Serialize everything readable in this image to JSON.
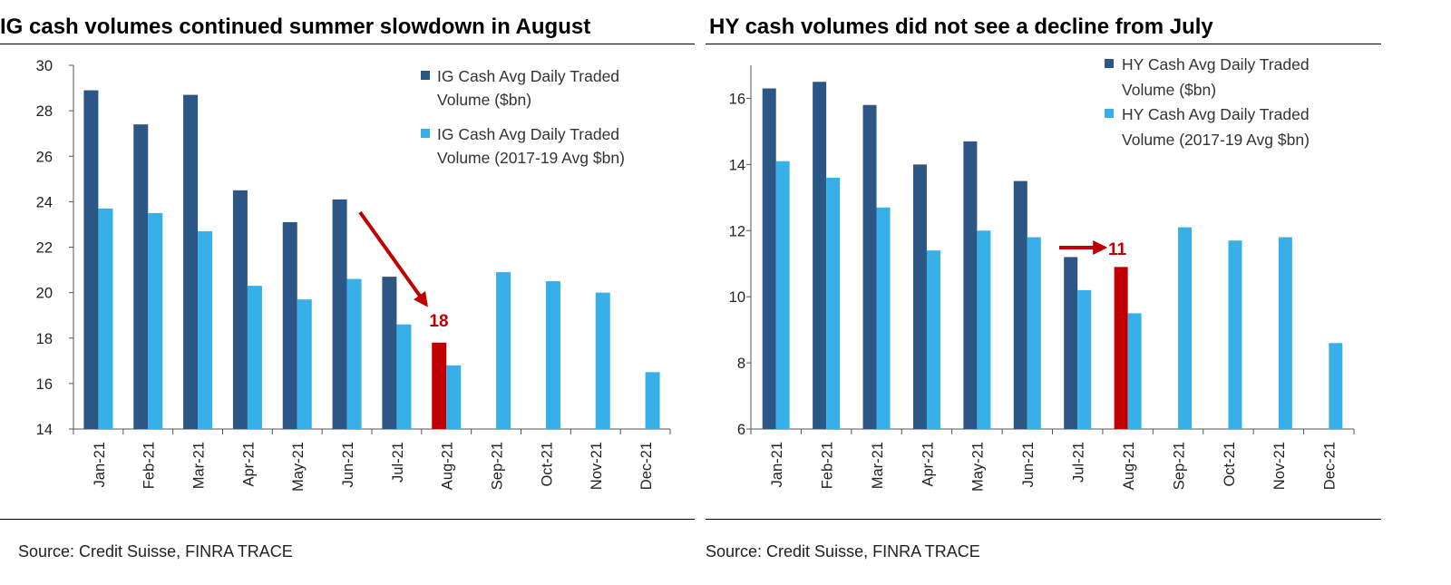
{
  "colors": {
    "dark": "#2b5685",
    "light": "#37b0ea",
    "highlight": "#c00000",
    "axis": "#000000"
  },
  "charts": [
    {
      "title": "IG cash volumes continued summer slowdown in August",
      "source": "Source: Credit Suisse, FINRA TRACE",
      "callout_label": "18"
    },
    {
      "title": "HY cash volumes did not see a decline from July",
      "source": "Source: Credit Suisse, FINRA TRACE",
      "callout_label": "11"
    }
  ],
  "chart_data": [
    {
      "type": "bar",
      "title": "IG cash volumes continued summer slowdown in August",
      "categories": [
        "Jan-21",
        "Feb-21",
        "Mar-21",
        "Apr-21",
        "May-21",
        "Jun-21",
        "Jul-21",
        "Aug-21",
        "Sep-21",
        "Oct-21",
        "Nov-21",
        "Dec-21"
      ],
      "series": [
        {
          "name": "IG Cash Avg Daily Traded Volume ($bn)",
          "legend_lines": [
            "IG Cash Avg Daily Traded",
            "Volume ($bn)"
          ],
          "values": [
            28.9,
            27.4,
            28.7,
            24.5,
            23.1,
            24.1,
            20.7,
            17.8,
            null,
            null,
            null,
            null
          ]
        },
        {
          "name": "IG Cash Avg Daily Traded Volume (2017-19 Avg $bn)",
          "legend_lines": [
            "IG Cash Avg Daily Traded",
            "Volume (2017-19 Avg $bn)"
          ],
          "values": [
            23.7,
            23.5,
            22.7,
            20.3,
            19.7,
            20.6,
            18.6,
            16.8,
            20.9,
            20.5,
            20.0,
            16.5
          ]
        }
      ],
      "highlight": {
        "series": 0,
        "index": 7
      },
      "annotation": {
        "text": "18",
        "arrow": "diagonal"
      },
      "ylim": [
        14,
        30
      ],
      "yticks": [
        14,
        16,
        18,
        20,
        22,
        24,
        26,
        28,
        30
      ],
      "xlabel": "",
      "ylabel": "",
      "legend": "top-right"
    },
    {
      "type": "bar",
      "title": "HY cash volumes did not see a decline from July",
      "categories": [
        "Jan-21",
        "Feb-21",
        "Mar-21",
        "Apr-21",
        "May-21",
        "Jun-21",
        "Jul-21",
        "Aug-21",
        "Sep-21",
        "Oct-21",
        "Nov-21",
        "Dec-21"
      ],
      "series": [
        {
          "name": "HY Cash Avg Daily Traded Volume ($bn)",
          "legend_lines": [
            "HY Cash Avg Daily Traded",
            "Volume ($bn)"
          ],
          "values": [
            16.3,
            16.5,
            15.8,
            14.0,
            14.7,
            13.5,
            11.2,
            10.9,
            null,
            null,
            null,
            null
          ]
        },
        {
          "name": "HY Cash Avg Daily Traded Volume (2017-19 Avg $bn)",
          "legend_lines": [
            "HY Cash Avg Daily Traded",
            "Volume (2017-19 Avg $bn)"
          ],
          "values": [
            14.1,
            13.6,
            12.7,
            11.4,
            12.0,
            11.8,
            10.2,
            9.5,
            12.1,
            11.7,
            11.8,
            8.6
          ]
        }
      ],
      "highlight": {
        "series": 0,
        "index": 7
      },
      "annotation": {
        "text": "11",
        "arrow": "horizontal"
      },
      "ylim": [
        6,
        17
      ],
      "yticks": [
        6,
        8,
        10,
        12,
        14,
        16
      ],
      "xlabel": "",
      "ylabel": "",
      "legend": "top-right"
    }
  ]
}
